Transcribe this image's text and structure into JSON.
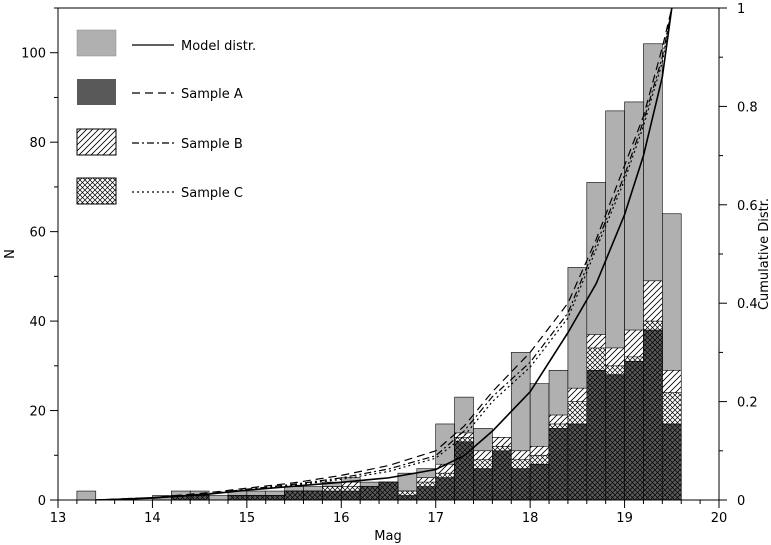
{
  "chart_data": {
    "type": "bar",
    "xlabel": "Mag",
    "ylabel": "N",
    "y2label": "Cumulative Distr.",
    "xlim": [
      13,
      20
    ],
    "ylim": [
      0,
      110
    ],
    "y2lim": [
      0,
      1
    ],
    "x_ticks": [
      "13",
      "14",
      "15",
      "16",
      "17",
      "18",
      "19",
      "20"
    ],
    "y_ticks": [
      "0",
      "20",
      "40",
      "60",
      "80",
      "100"
    ],
    "y2_ticks": [
      "0",
      "0.2",
      "0.4",
      "0.6",
      "0.8",
      "1"
    ],
    "bin_width": 0.2,
    "colors": {
      "model": "#b0b0b0",
      "sample_a": "#595959"
    },
    "legend": [
      {
        "label": "Model distr.",
        "patch": "light-gray",
        "line": "solid"
      },
      {
        "label": "Sample A",
        "patch": "dark-gray",
        "line": "dashed"
      },
      {
        "label": "Sample B",
        "patch": "hatch-single",
        "line": "dash-dot"
      },
      {
        "label": "Sample C",
        "patch": "hatch-cross",
        "line": "dotted"
      }
    ],
    "series": [
      {
        "name": "Model distr.",
        "x": [
          13.3,
          13.5,
          13.7,
          13.9,
          14.1,
          14.3,
          14.5,
          14.7,
          14.9,
          15.1,
          15.3,
          15.5,
          15.7,
          15.9,
          16.1,
          16.3,
          16.5,
          16.7,
          16.9,
          17.1,
          17.3,
          17.5,
          17.7,
          17.9,
          18.1,
          18.3,
          18.5,
          18.7,
          18.9,
          19.1,
          19.3,
          19.5
        ],
        "values": [
          2,
          0,
          0,
          0,
          1,
          2,
          2,
          1,
          2,
          2,
          2,
          3,
          3,
          4,
          5,
          4,
          4,
          6,
          7,
          17,
          23,
          16,
          14,
          33,
          26,
          29,
          52,
          71,
          87,
          89,
          102,
          64
        ]
      },
      {
        "name": "Sample A",
        "x": [
          13.3,
          13.5,
          13.7,
          13.9,
          14.1,
          14.3,
          14.5,
          14.7,
          14.9,
          15.1,
          15.3,
          15.5,
          15.7,
          15.9,
          16.1,
          16.3,
          16.5,
          16.7,
          16.9,
          17.1,
          17.3,
          17.5,
          17.7,
          17.9,
          18.1,
          18.3,
          18.5,
          18.7,
          18.9,
          19.1,
          19.3,
          19.5
        ],
        "values": [
          0,
          0,
          0,
          0,
          0,
          1,
          1,
          0,
          1,
          1,
          1,
          2,
          2,
          2,
          2,
          3,
          4,
          1,
          3,
          5,
          13,
          7,
          11,
          7,
          8,
          16,
          17,
          29,
          28,
          31,
          38,
          17
        ]
      },
      {
        "name": "Sample B",
        "x": [
          13.3,
          13.5,
          13.7,
          13.9,
          14.1,
          14.3,
          14.5,
          14.7,
          14.9,
          15.1,
          15.3,
          15.5,
          15.7,
          15.9,
          16.1,
          16.3,
          16.5,
          16.7,
          16.9,
          17.1,
          17.3,
          17.5,
          17.7,
          17.9,
          18.1,
          18.3,
          18.5,
          18.7,
          18.9,
          19.1,
          19.3,
          19.5
        ],
        "values": [
          0,
          0,
          0,
          0,
          0,
          1,
          1,
          0,
          1,
          1,
          1,
          2,
          2,
          3,
          4,
          3,
          4,
          2,
          5,
          8,
          15,
          11,
          14,
          11,
          12,
          19,
          25,
          37,
          34,
          38,
          49,
          29
        ]
      },
      {
        "name": "Sample C",
        "x": [
          13.3,
          13.5,
          13.7,
          13.9,
          14.1,
          14.3,
          14.5,
          14.7,
          14.9,
          15.1,
          15.3,
          15.5,
          15.7,
          15.9,
          16.1,
          16.3,
          16.5,
          16.7,
          16.9,
          17.1,
          17.3,
          17.5,
          17.7,
          17.9,
          18.1,
          18.3,
          18.5,
          18.7,
          18.9,
          19.1,
          19.3,
          19.5
        ],
        "values": [
          0,
          0,
          0,
          0,
          0,
          1,
          1,
          0,
          1,
          1,
          1,
          2,
          2,
          3,
          3,
          3,
          4,
          2,
          4,
          6,
          14,
          9,
          12,
          9,
          10,
          17,
          22,
          34,
          30,
          32,
          40,
          24
        ]
      }
    ],
    "cumulative": [
      {
        "name": "Model distr.",
        "line": "solid",
        "x": [
          13.4,
          14,
          14.6,
          15,
          15.5,
          16,
          16.5,
          17,
          17.3,
          17.6,
          18,
          18.4,
          18.7,
          19,
          19.2,
          19.4,
          19.5
        ],
        "y": [
          0,
          0.004,
          0.012,
          0.02,
          0.028,
          0.036,
          0.045,
          0.062,
          0.09,
          0.14,
          0.22,
          0.34,
          0.44,
          0.58,
          0.7,
          0.86,
          1.0
        ]
      },
      {
        "name": "Sample A",
        "line": "dashed",
        "x": [
          13.4,
          14,
          14.6,
          15,
          15.5,
          16,
          16.5,
          17,
          17.3,
          17.6,
          18,
          18.4,
          18.7,
          19,
          19.2,
          19.4,
          19.5
        ],
        "y": [
          0,
          0.005,
          0.015,
          0.024,
          0.035,
          0.05,
          0.07,
          0.1,
          0.15,
          0.22,
          0.3,
          0.4,
          0.53,
          0.68,
          0.78,
          0.92,
          1.0
        ]
      },
      {
        "name": "Sample B",
        "line": "dash-dot",
        "x": [
          13.4,
          14,
          14.6,
          15,
          15.5,
          16,
          16.5,
          17,
          17.3,
          17.6,
          18,
          18.4,
          18.7,
          19,
          19.2,
          19.4,
          19.5
        ],
        "y": [
          0,
          0.005,
          0.013,
          0.022,
          0.032,
          0.045,
          0.063,
          0.09,
          0.14,
          0.21,
          0.28,
          0.38,
          0.52,
          0.66,
          0.77,
          0.9,
          1.0
        ]
      },
      {
        "name": "Sample C",
        "line": "dotted",
        "x": [
          13.4,
          14,
          14.6,
          15,
          15.5,
          16,
          16.5,
          17,
          17.3,
          17.6,
          18,
          18.4,
          18.7,
          19,
          19.2,
          19.4,
          19.5
        ],
        "y": [
          0,
          0.004,
          0.012,
          0.02,
          0.03,
          0.042,
          0.058,
          0.085,
          0.13,
          0.2,
          0.27,
          0.37,
          0.51,
          0.65,
          0.76,
          0.89,
          1.0
        ]
      }
    ]
  }
}
